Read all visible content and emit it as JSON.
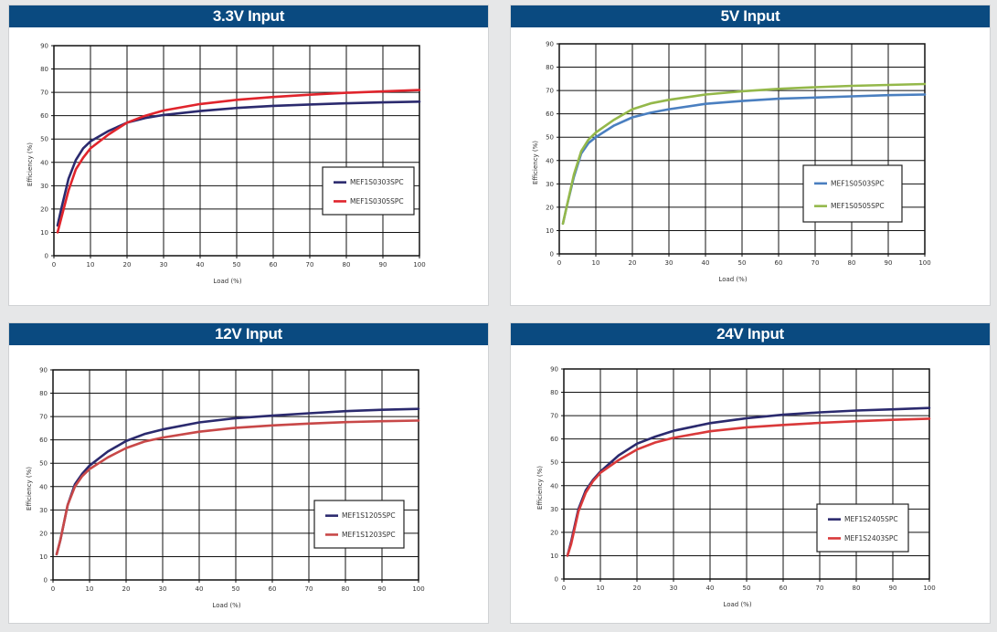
{
  "chart_data": [
    {
      "type": "line",
      "title": "3.3V Input",
      "xlabel": "Load  (%)",
      "ylabel": "Efficiency  (%)",
      "xlim": [
        0,
        100
      ],
      "ylim": [
        0,
        90
      ],
      "xticks": [
        0,
        10,
        20,
        30,
        40,
        50,
        60,
        70,
        80,
        90,
        100
      ],
      "yticks": [
        0,
        10,
        20,
        30,
        40,
        50,
        60,
        70,
        80,
        90
      ],
      "grid": true,
      "legend": "right",
      "x": [
        1,
        2,
        4,
        6,
        8,
        10,
        15,
        20,
        25,
        30,
        40,
        50,
        60,
        70,
        80,
        90,
        100
      ],
      "series": [
        {
          "name": "MEF1S0303SPC",
          "color": "#2b2a6e",
          "values": [
            13,
            20,
            33,
            41,
            46,
            49,
            53.5,
            57,
            59,
            60.3,
            62,
            63.3,
            64.2,
            64.8,
            65.3,
            65.7,
            66
          ]
        },
        {
          "name": "MEF1S0305SPC",
          "color": "#e0242c",
          "values": [
            10,
            16,
            28,
            37,
            42,
            46,
            52,
            57,
            60,
            62.2,
            65,
            66.8,
            68,
            69,
            69.8,
            70.4,
            71
          ]
        }
      ]
    },
    {
      "type": "line",
      "title": "5V Input",
      "xlabel": "Load  (%)",
      "ylabel": "Efficiency  (%)",
      "xlim": [
        0,
        100
      ],
      "ylim": [
        0,
        90
      ],
      "xticks": [
        0,
        10,
        20,
        30,
        40,
        50,
        60,
        70,
        80,
        90,
        100
      ],
      "yticks": [
        0,
        10,
        20,
        30,
        40,
        50,
        60,
        70,
        80,
        90
      ],
      "grid": true,
      "legend": "right",
      "x": [
        1,
        2,
        4,
        6,
        8,
        10,
        15,
        20,
        25,
        30,
        40,
        50,
        60,
        70,
        80,
        90,
        100
      ],
      "series": [
        {
          "name": "MEF1S0503SPC",
          "color": "#4a7fc0",
          "values": [
            13,
            20,
            33,
            43,
            47.5,
            50,
            55,
            58.5,
            60.5,
            62,
            64.3,
            65.5,
            66.5,
            67,
            67.5,
            68,
            68.3
          ]
        },
        {
          "name": "MEF1S0505SPC",
          "color": "#94b84a",
          "values": [
            13,
            20,
            34,
            44,
            49,
            52,
            57.5,
            62,
            64.5,
            66,
            68.3,
            69.7,
            70.7,
            71.4,
            72,
            72.4,
            72.8
          ]
        }
      ]
    },
    {
      "type": "line",
      "title": "12V Input",
      "xlabel": "Load  (%)",
      "ylabel": "Efficiency  (%)",
      "xlim": [
        0,
        100
      ],
      "ylim": [
        0,
        90
      ],
      "xticks": [
        0,
        10,
        20,
        30,
        40,
        50,
        60,
        70,
        80,
        90,
        100
      ],
      "yticks": [
        0,
        10,
        20,
        30,
        40,
        50,
        60,
        70,
        80,
        90
      ],
      "grid": true,
      "legend": "bottom-right",
      "x": [
        1,
        2,
        4,
        6,
        8,
        10,
        15,
        20,
        25,
        30,
        40,
        50,
        60,
        70,
        80,
        90,
        100
      ],
      "series": [
        {
          "name": "MEF1S1205SPC",
          "color": "#2b2a6e",
          "values": [
            11,
            17,
            32,
            41,
            45.5,
            49,
            55,
            59.5,
            62.5,
            64.5,
            67.5,
            69.3,
            70.4,
            71.4,
            72.3,
            72.9,
            73.3
          ]
        },
        {
          "name": "MEF1S1203SPC",
          "color": "#c84848",
          "values": [
            11,
            17,
            32,
            40,
            44.5,
            47.5,
            52.5,
            56.5,
            59.3,
            61,
            63.5,
            65.2,
            66.2,
            67,
            67.6,
            68,
            68.3
          ]
        }
      ]
    },
    {
      "type": "line",
      "title": "24V Input",
      "xlabel": "Load  (%)",
      "ylabel": "Efficiency  (%)",
      "xlim": [
        0,
        100
      ],
      "ylim": [
        0,
        90
      ],
      "xticks": [
        0,
        10,
        20,
        30,
        40,
        50,
        60,
        70,
        80,
        90,
        100
      ],
      "yticks": [
        0,
        10,
        20,
        30,
        40,
        50,
        60,
        70,
        80,
        90
      ],
      "grid": true,
      "legend": "bottom-right",
      "x": [
        1,
        2,
        4,
        6,
        8,
        10,
        15,
        20,
        25,
        30,
        40,
        50,
        60,
        70,
        80,
        90,
        100
      ],
      "series": [
        {
          "name": "MEF1S2405SPC",
          "color": "#2b2a6e",
          "values": [
            10,
            16,
            30,
            38,
            42.5,
            46,
            53,
            58,
            61,
            63.5,
            66.8,
            68.9,
            70.4,
            71.4,
            72.2,
            72.7,
            73.3
          ]
        },
        {
          "name": "MEF1S2403SPC",
          "color": "#d9393a",
          "values": [
            10,
            15,
            29,
            37,
            42,
            45.5,
            51,
            55.5,
            58.5,
            60.5,
            63.3,
            65,
            66,
            66.9,
            67.6,
            68.2,
            68.7
          ]
        }
      ]
    }
  ]
}
